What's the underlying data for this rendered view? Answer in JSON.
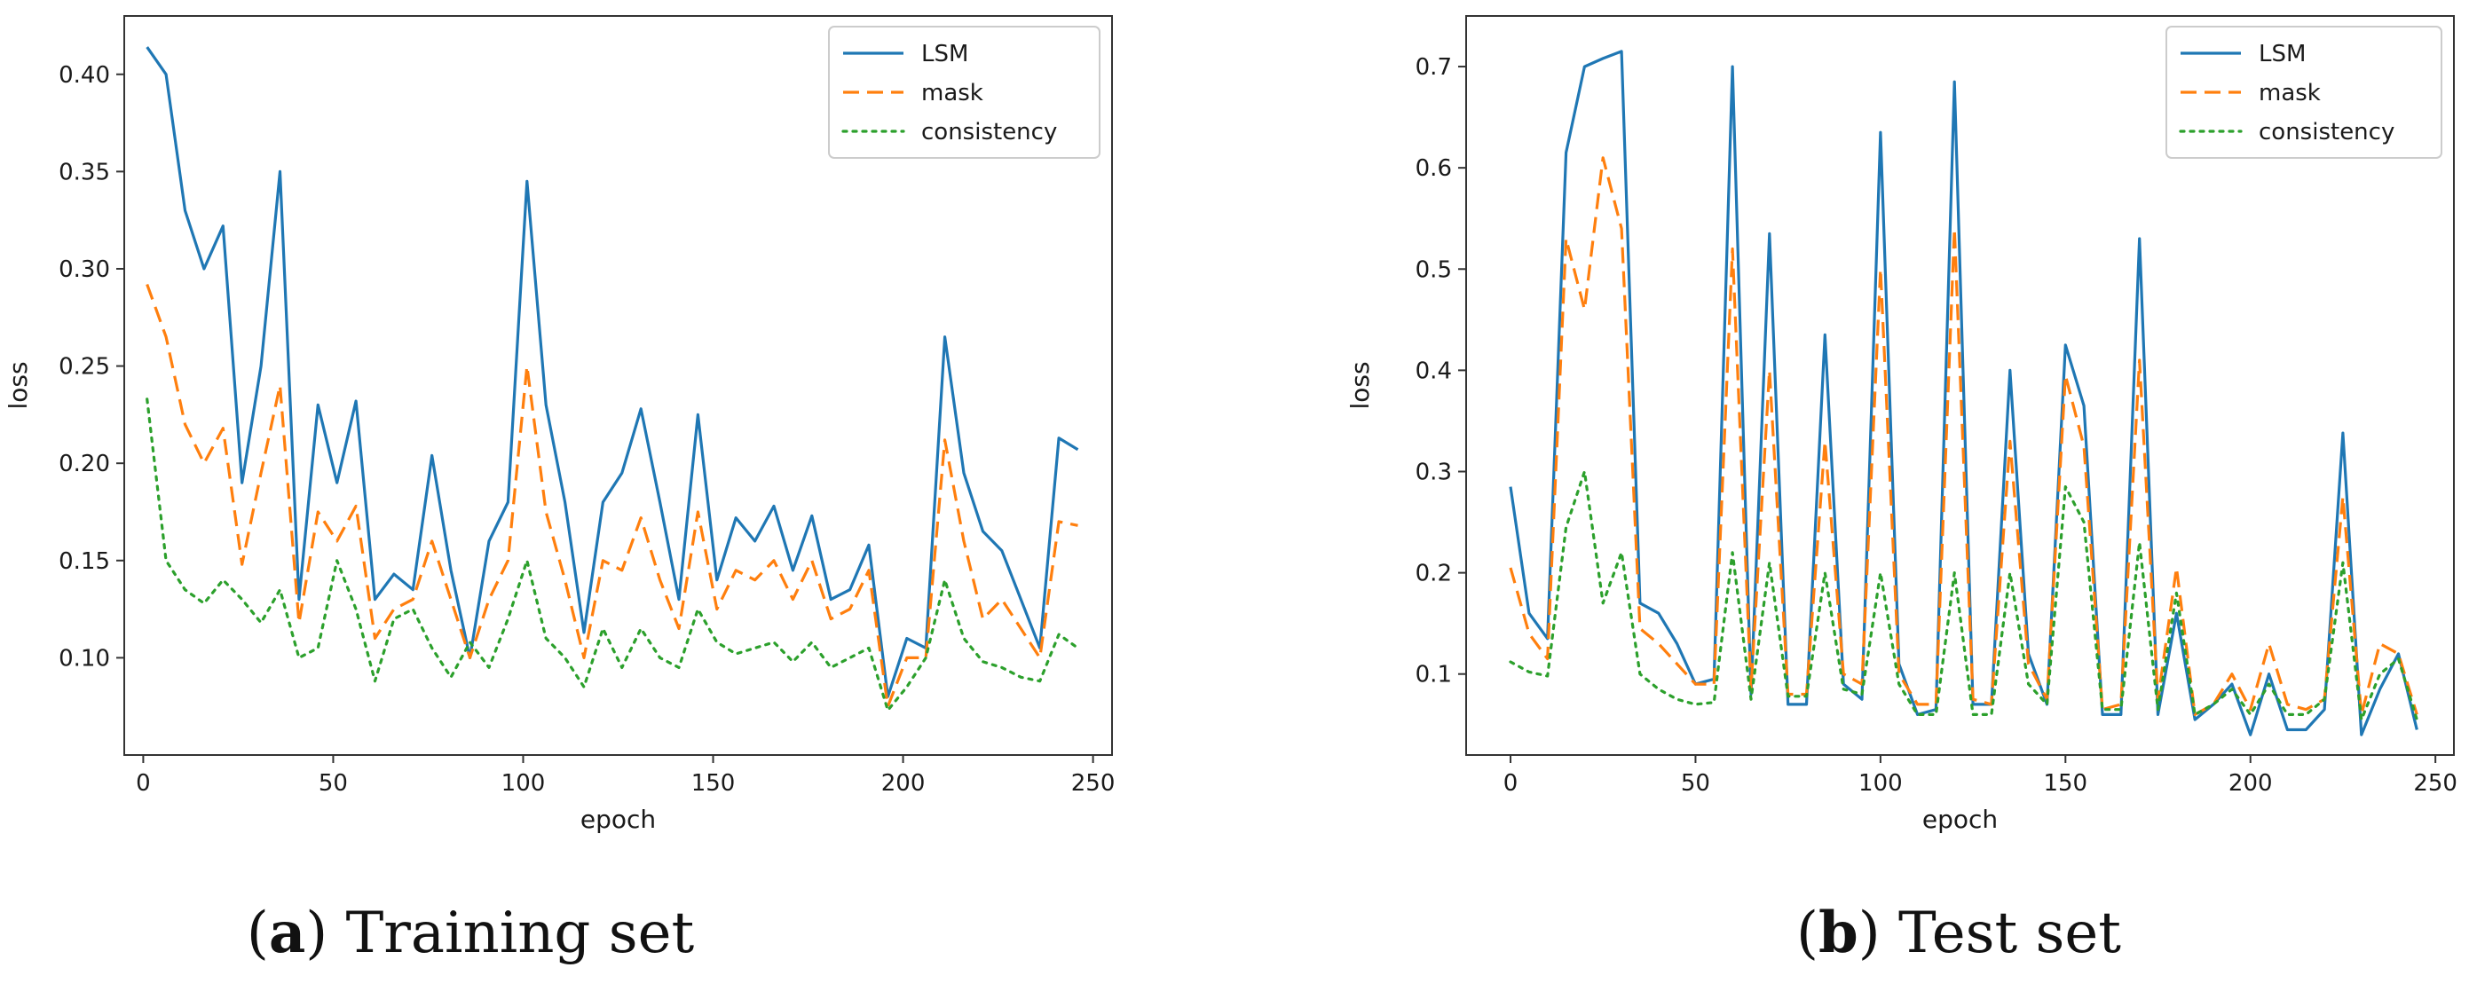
{
  "chart_data": [
    {
      "type": "line",
      "panel": "a",
      "caption_letter": "a",
      "caption_text": " Training set",
      "title": "",
      "xlabel": "epoch",
      "ylabel": "loss",
      "xlim": [
        -5,
        255
      ],
      "ylim": [
        0.05,
        0.43
      ],
      "xticks": [
        0,
        50,
        100,
        150,
        200,
        250
      ],
      "yticks": [
        0.1,
        0.15,
        0.2,
        0.25,
        0.3,
        0.35,
        0.4
      ],
      "ytick_labels": [
        "0.10",
        "0.15",
        "0.20",
        "0.25",
        "0.30",
        "0.35",
        "0.40"
      ],
      "legend_position": "top-right",
      "x": [
        1,
        6,
        11,
        16,
        21,
        26,
        31,
        36,
        41,
        46,
        51,
        56,
        61,
        66,
        71,
        76,
        81,
        86,
        91,
        96,
        101,
        106,
        111,
        116,
        121,
        126,
        131,
        136,
        141,
        146,
        151,
        156,
        161,
        166,
        171,
        176,
        181,
        186,
        191,
        196,
        201,
        206,
        211,
        216,
        221,
        226,
        231,
        236,
        241,
        246
      ],
      "series": [
        {
          "name": "LSM",
          "color": "#1f77b4",
          "style": "solid",
          "values": [
            0.414,
            0.4,
            0.33,
            0.3,
            0.322,
            0.19,
            0.25,
            0.35,
            0.13,
            0.23,
            0.19,
            0.232,
            0.13,
            0.143,
            0.135,
            0.204,
            0.145,
            0.1,
            0.16,
            0.18,
            0.345,
            0.23,
            0.18,
            0.113,
            0.18,
            0.195,
            0.228,
            0.18,
            0.13,
            0.225,
            0.14,
            0.172,
            0.16,
            0.178,
            0.145,
            0.173,
            0.13,
            0.135,
            0.158,
            0.08,
            0.11,
            0.105,
            0.265,
            0.195,
            0.165,
            0.155,
            0.13,
            0.105,
            0.213,
            0.207
          ]
        },
        {
          "name": "mask",
          "color": "#ff7f0e",
          "style": "dashed",
          "values": [
            0.292,
            0.265,
            0.22,
            0.2,
            0.218,
            0.148,
            0.195,
            0.24,
            0.118,
            0.175,
            0.16,
            0.178,
            0.11,
            0.125,
            0.13,
            0.16,
            0.13,
            0.1,
            0.13,
            0.15,
            0.25,
            0.175,
            0.14,
            0.1,
            0.15,
            0.145,
            0.172,
            0.14,
            0.115,
            0.175,
            0.125,
            0.145,
            0.14,
            0.15,
            0.13,
            0.15,
            0.12,
            0.125,
            0.145,
            0.075,
            0.1,
            0.1,
            0.212,
            0.16,
            0.12,
            0.13,
            0.115,
            0.1,
            0.17,
            0.168
          ]
        },
        {
          "name": "consistency",
          "color": "#2ca02c",
          "style": "dotted",
          "values": [
            0.233,
            0.15,
            0.135,
            0.128,
            0.14,
            0.13,
            0.118,
            0.135,
            0.1,
            0.105,
            0.15,
            0.125,
            0.088,
            0.12,
            0.125,
            0.105,
            0.09,
            0.108,
            0.095,
            0.12,
            0.15,
            0.11,
            0.1,
            0.085,
            0.115,
            0.095,
            0.115,
            0.1,
            0.095,
            0.125,
            0.108,
            0.102,
            0.105,
            0.108,
            0.098,
            0.108,
            0.095,
            0.1,
            0.105,
            0.073,
            0.085,
            0.1,
            0.14,
            0.11,
            0.098,
            0.095,
            0.09,
            0.088,
            0.112,
            0.105
          ]
        }
      ]
    },
    {
      "type": "line",
      "panel": "b",
      "caption_letter": "b",
      "caption_text": " Test set",
      "title": "",
      "xlabel": "epoch",
      "ylabel": "loss",
      "xlim": [
        -12,
        255
      ],
      "ylim": [
        0.02,
        0.75
      ],
      "xticks": [
        0,
        50,
        100,
        150,
        200,
        250
      ],
      "yticks": [
        0.1,
        0.2,
        0.3,
        0.4,
        0.5,
        0.6,
        0.7
      ],
      "ytick_labels": [
        "0.1",
        "0.2",
        "0.3",
        "0.4",
        "0.5",
        "0.6",
        "0.7"
      ],
      "legend_position": "top-right",
      "x": [
        0,
        5,
        10,
        15,
        20,
        25,
        30,
        35,
        40,
        45,
        50,
        55,
        60,
        65,
        70,
        75,
        80,
        85,
        90,
        95,
        100,
        105,
        110,
        115,
        120,
        125,
        130,
        135,
        140,
        145,
        150,
        155,
        160,
        165,
        170,
        175,
        180,
        185,
        190,
        195,
        200,
        205,
        210,
        215,
        220,
        225,
        230,
        235,
        240,
        245
      ],
      "series": [
        {
          "name": "LSM",
          "color": "#1f77b4",
          "style": "solid",
          "values": [
            0.285,
            0.16,
            0.135,
            0.615,
            0.7,
            0.708,
            0.715,
            0.17,
            0.16,
            0.13,
            0.09,
            0.095,
            0.7,
            0.08,
            0.535,
            0.07,
            0.07,
            0.435,
            0.09,
            0.075,
            0.635,
            0.11,
            0.06,
            0.065,
            0.685,
            0.07,
            0.07,
            0.4,
            0.12,
            0.07,
            0.425,
            0.365,
            0.06,
            0.06,
            0.53,
            0.06,
            0.16,
            0.055,
            0.07,
            0.09,
            0.04,
            0.1,
            0.045,
            0.045,
            0.065,
            0.338,
            0.04,
            0.085,
            0.12,
            0.045
          ]
        },
        {
          "name": "mask",
          "color": "#ff7f0e",
          "style": "dashed",
          "values": [
            0.205,
            0.14,
            0.115,
            0.53,
            0.46,
            0.61,
            0.54,
            0.145,
            0.13,
            0.11,
            0.09,
            0.09,
            0.52,
            0.085,
            0.4,
            0.08,
            0.08,
            0.33,
            0.1,
            0.09,
            0.5,
            0.1,
            0.07,
            0.07,
            0.54,
            0.075,
            0.07,
            0.33,
            0.11,
            0.075,
            0.395,
            0.325,
            0.065,
            0.07,
            0.41,
            0.075,
            0.205,
            0.06,
            0.07,
            0.1,
            0.065,
            0.13,
            0.07,
            0.065,
            0.075,
            0.275,
            0.06,
            0.13,
            0.12,
            0.06
          ]
        },
        {
          "name": "consistency",
          "color": "#2ca02c",
          "style": "dotted",
          "values": [
            0.112,
            0.102,
            0.098,
            0.245,
            0.3,
            0.17,
            0.22,
            0.1,
            0.085,
            0.075,
            0.07,
            0.072,
            0.22,
            0.075,
            0.21,
            0.078,
            0.078,
            0.2,
            0.085,
            0.08,
            0.2,
            0.09,
            0.06,
            0.06,
            0.2,
            0.06,
            0.06,
            0.2,
            0.09,
            0.07,
            0.285,
            0.25,
            0.065,
            0.065,
            0.23,
            0.065,
            0.18,
            0.06,
            0.07,
            0.085,
            0.06,
            0.09,
            0.06,
            0.06,
            0.075,
            0.21,
            0.055,
            0.1,
            0.115,
            0.055
          ]
        }
      ]
    }
  ]
}
